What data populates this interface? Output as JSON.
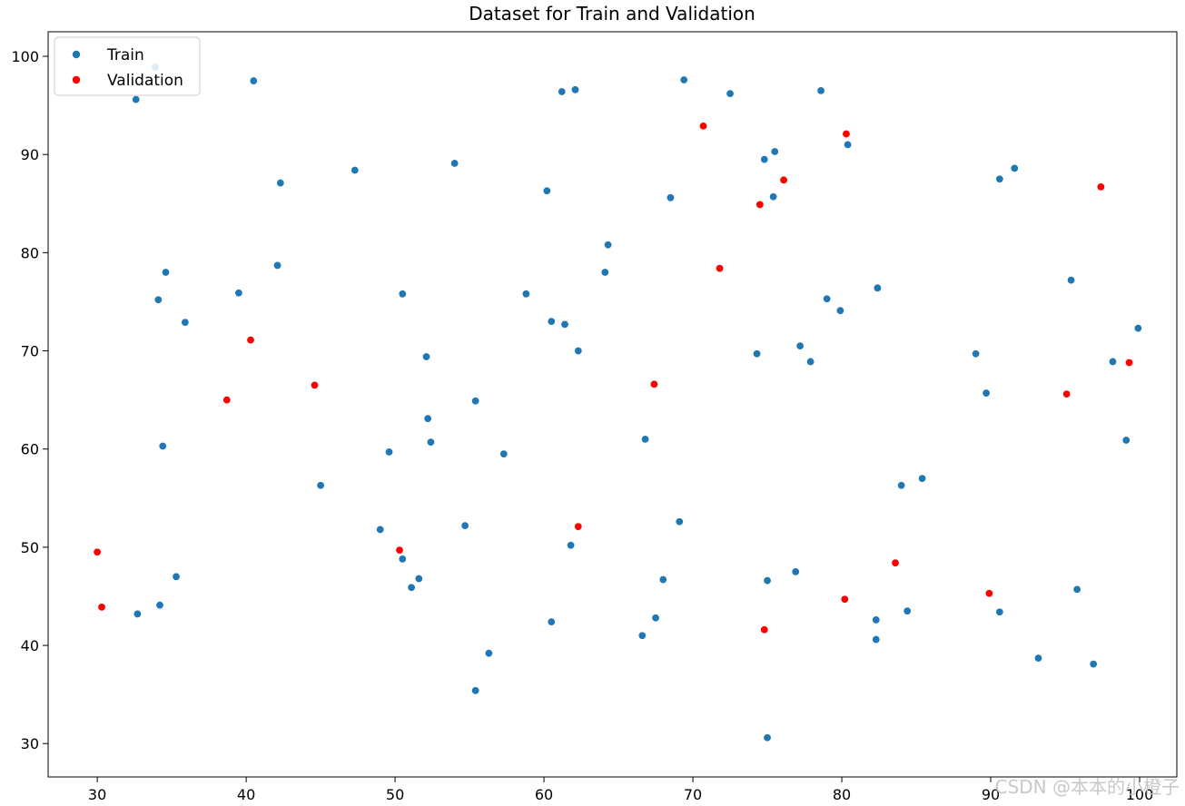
{
  "chart_data": {
    "type": "scatter",
    "title": "Dataset for Train and Validation",
    "xlabel": "",
    "ylabel": "",
    "xlim": [
      26.7,
      102.5
    ],
    "ylim": [
      26.6,
      102.5
    ],
    "x_ticks": [
      30,
      40,
      50,
      60,
      70,
      80,
      90,
      100
    ],
    "y_ticks": [
      30,
      40,
      50,
      60,
      70,
      80,
      90,
      100
    ],
    "grid": false,
    "legend_position": "upper-left",
    "series": [
      {
        "name": "Train",
        "color": "#1f77b4",
        "points": [
          [
            33.9,
            98.9
          ],
          [
            32.6,
            95.6
          ],
          [
            40.5,
            97.5
          ],
          [
            61.2,
            96.4
          ],
          [
            62.1,
            96.6
          ],
          [
            69.4,
            97.6
          ],
          [
            72.5,
            96.2
          ],
          [
            78.6,
            96.5
          ],
          [
            42.3,
            87.1
          ],
          [
            47.3,
            88.4
          ],
          [
            54.0,
            89.1
          ],
          [
            60.2,
            86.3
          ],
          [
            68.5,
            85.6
          ],
          [
            74.8,
            89.5
          ],
          [
            75.5,
            90.3
          ],
          [
            80.4,
            91.0
          ],
          [
            75.4,
            85.7
          ],
          [
            90.6,
            87.5
          ],
          [
            91.6,
            88.6
          ],
          [
            64.3,
            80.8
          ],
          [
            64.1,
            78.0
          ],
          [
            42.1,
            78.7
          ],
          [
            34.6,
            78.0
          ],
          [
            34.1,
            75.2
          ],
          [
            39.5,
            75.9
          ],
          [
            35.9,
            72.9
          ],
          [
            50.5,
            75.8
          ],
          [
            58.8,
            75.8
          ],
          [
            60.5,
            73.0
          ],
          [
            61.4,
            72.7
          ],
          [
            62.3,
            70.0
          ],
          [
            52.1,
            69.4
          ],
          [
            79.0,
            75.3
          ],
          [
            79.9,
            74.1
          ],
          [
            82.4,
            76.4
          ],
          [
            77.2,
            70.5
          ],
          [
            77.9,
            68.9
          ],
          [
            74.3,
            69.7
          ],
          [
            95.4,
            77.2
          ],
          [
            89.0,
            69.7
          ],
          [
            99.9,
            72.3
          ],
          [
            98.2,
            68.9
          ],
          [
            89.7,
            65.7
          ],
          [
            99.1,
            60.9
          ],
          [
            55.4,
            64.9
          ],
          [
            52.2,
            63.1
          ],
          [
            52.4,
            60.7
          ],
          [
            49.6,
            59.7
          ],
          [
            57.3,
            59.5
          ],
          [
            66.8,
            61.0
          ],
          [
            34.4,
            60.3
          ],
          [
            45.0,
            56.3
          ],
          [
            84.0,
            56.3
          ],
          [
            85.4,
            57.0
          ],
          [
            49.0,
            51.8
          ],
          [
            54.7,
            52.2
          ],
          [
            61.8,
            50.2
          ],
          [
            69.1,
            52.6
          ],
          [
            50.5,
            48.8
          ],
          [
            51.6,
            46.8
          ],
          [
            51.1,
            45.9
          ],
          [
            35.3,
            47.0
          ],
          [
            34.2,
            44.1
          ],
          [
            32.7,
            43.2
          ],
          [
            60.5,
            42.4
          ],
          [
            67.5,
            42.8
          ],
          [
            66.6,
            41.0
          ],
          [
            68.0,
            46.7
          ],
          [
            75.0,
            46.6
          ],
          [
            76.9,
            47.5
          ],
          [
            82.3,
            42.6
          ],
          [
            84.4,
            43.5
          ],
          [
            82.3,
            40.6
          ],
          [
            90.6,
            43.4
          ],
          [
            95.8,
            45.7
          ],
          [
            93.2,
            38.7
          ],
          [
            96.9,
            38.1
          ],
          [
            56.3,
            39.2
          ],
          [
            55.4,
            35.4
          ],
          [
            75.0,
            30.6
          ]
        ]
      },
      {
        "name": "Validation",
        "color": "#ff0000",
        "points": [
          [
            70.7,
            92.9
          ],
          [
            80.3,
            92.1
          ],
          [
            76.1,
            87.4
          ],
          [
            74.5,
            84.9
          ],
          [
            71.8,
            78.4
          ],
          [
            97.4,
            86.7
          ],
          [
            40.3,
            71.1
          ],
          [
            38.7,
            65.0
          ],
          [
            44.6,
            66.5
          ],
          [
            67.4,
            66.6
          ],
          [
            95.1,
            65.6
          ],
          [
            99.3,
            68.8
          ],
          [
            30.0,
            49.5
          ],
          [
            30.3,
            43.9
          ],
          [
            50.3,
            49.7
          ],
          [
            62.3,
            52.1
          ],
          [
            83.6,
            48.4
          ],
          [
            80.2,
            44.7
          ],
          [
            74.8,
            41.6
          ],
          [
            89.9,
            45.3
          ]
        ]
      }
    ]
  },
  "watermark": "CSDN @本本的小橙子"
}
